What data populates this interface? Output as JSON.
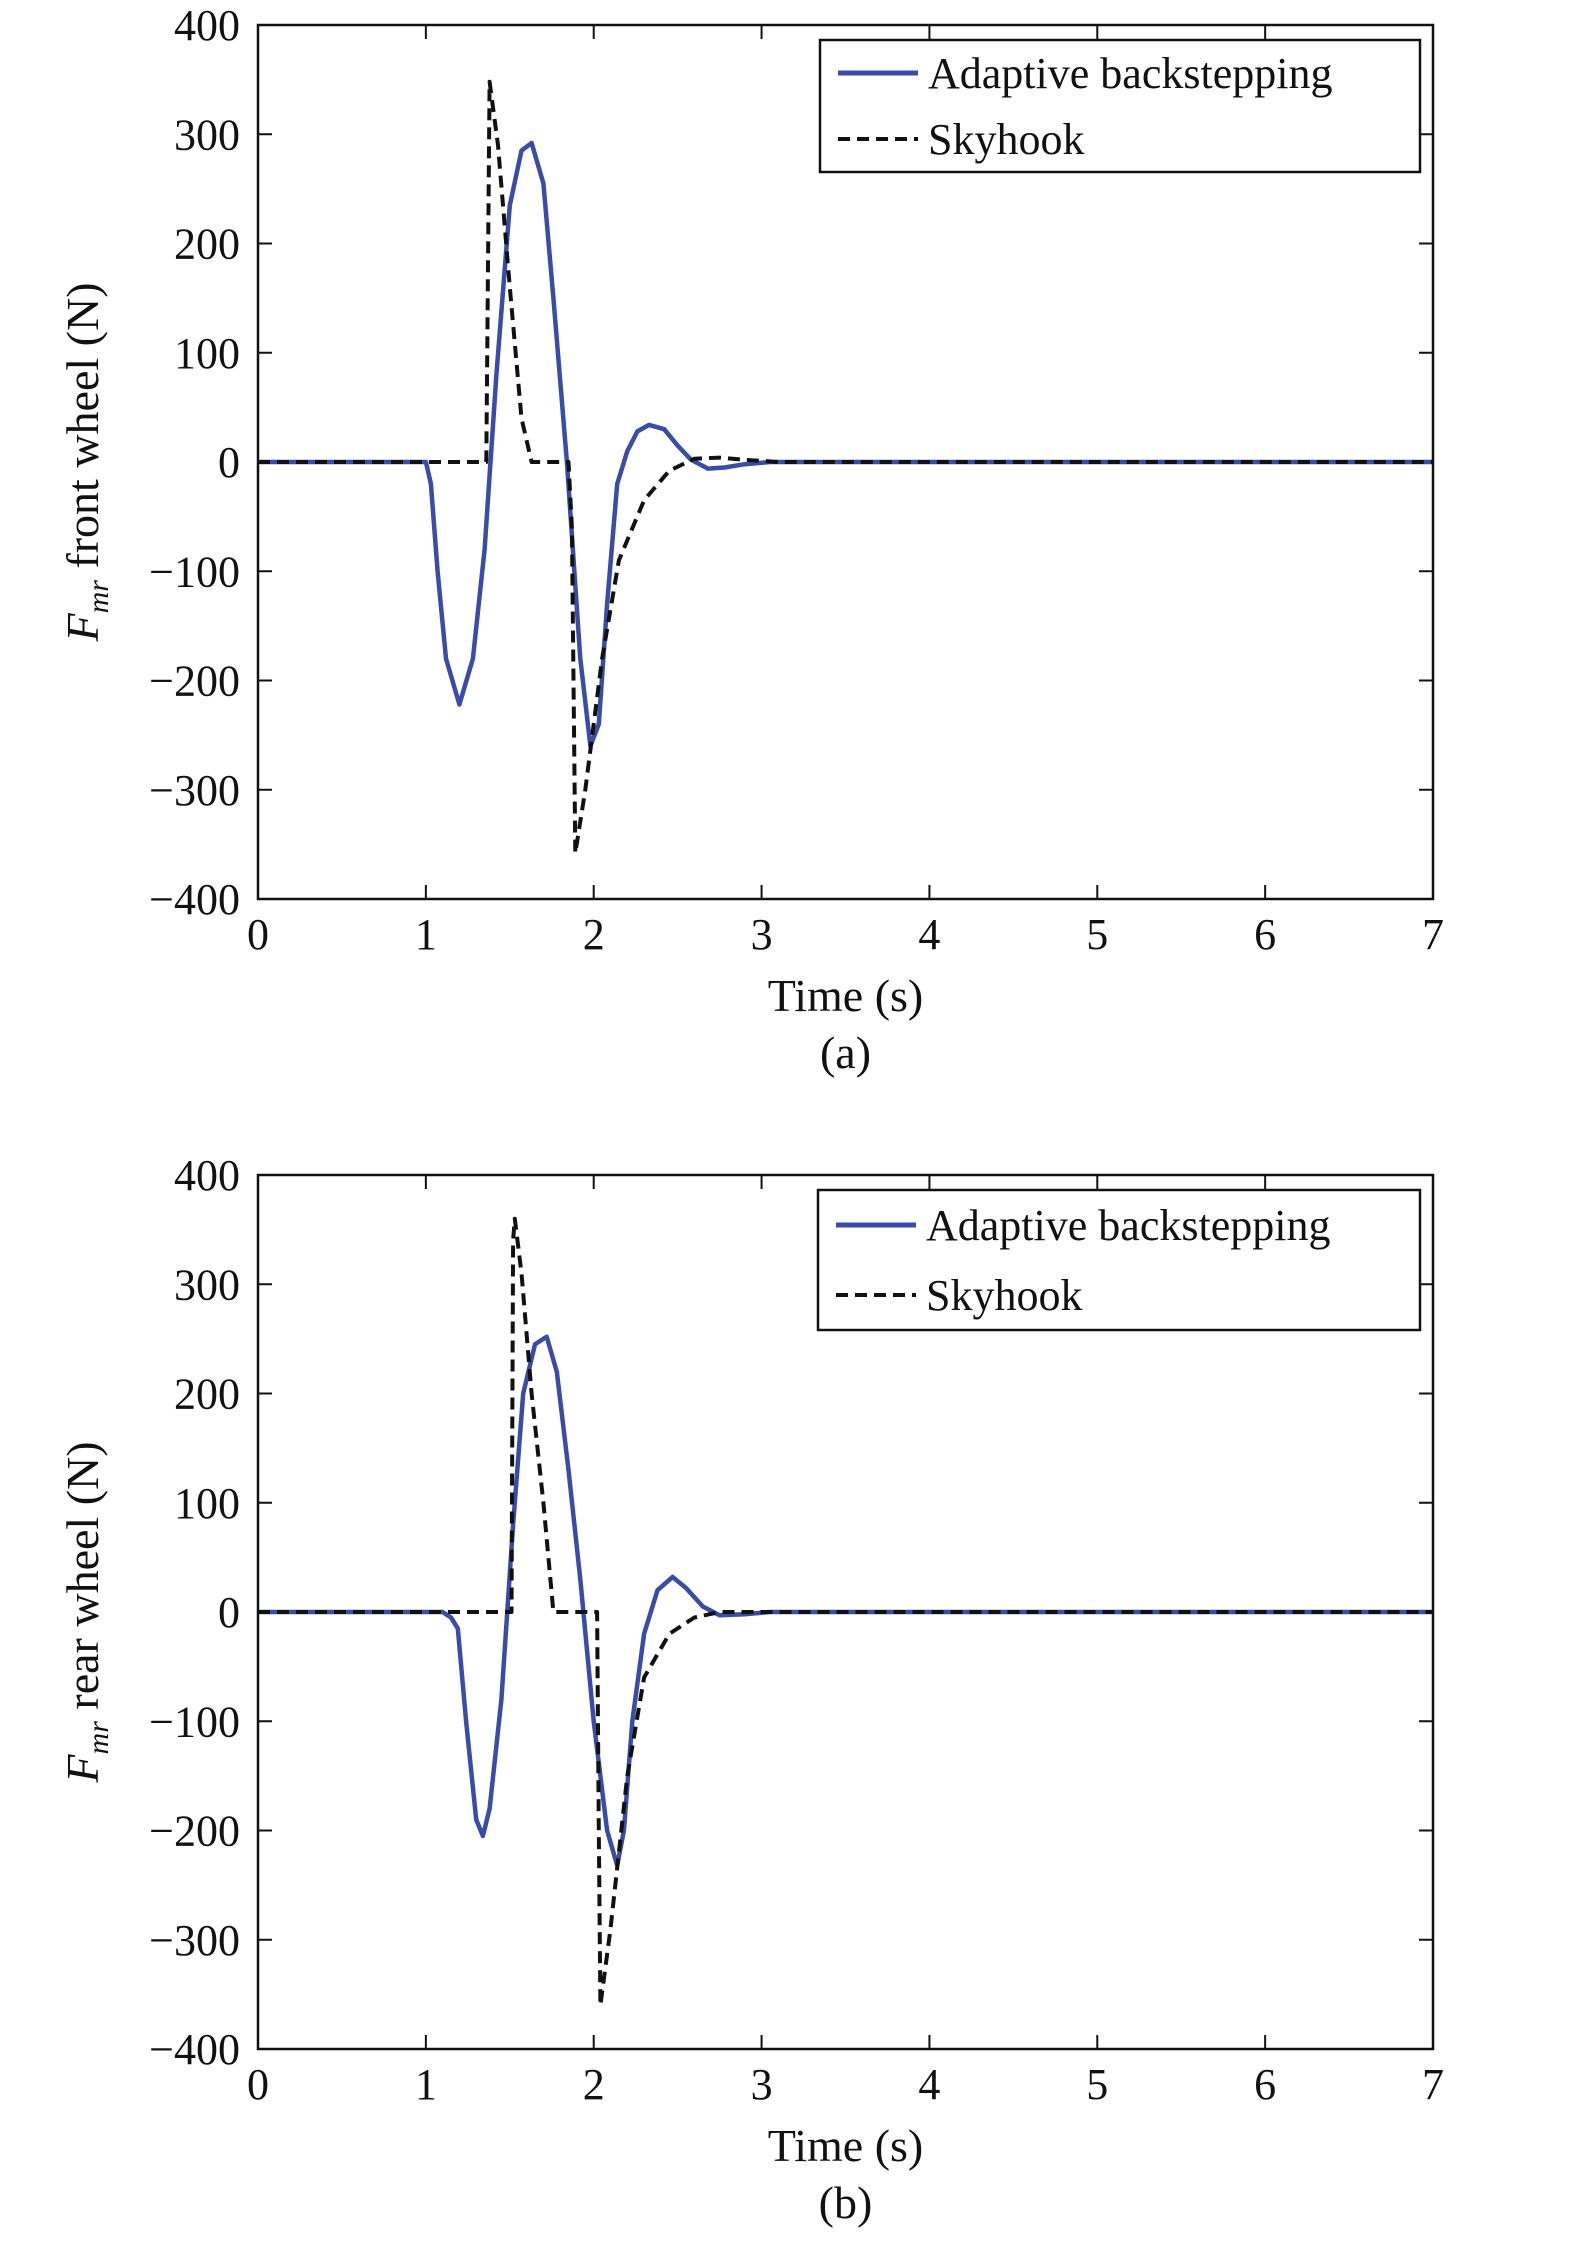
{
  "colors": {
    "adaptive": "#3a4ca8",
    "skyhook": "#111111",
    "axes": "#111111",
    "background": "#ffffff"
  },
  "chart_data": [
    {
      "type": "line",
      "caption": "(a)",
      "xlabel": "Time (s)",
      "ylabel": {
        "symbol": "F",
        "subscript": "mr",
        "text": " front wheel (N)"
      },
      "xlim": [
        0,
        7
      ],
      "ylim": [
        -400,
        400
      ],
      "xticks": [
        0,
        1,
        2,
        3,
        4,
        5,
        6,
        7
      ],
      "yticks": [
        -400,
        -300,
        -200,
        -100,
        0,
        100,
        200,
        300,
        400
      ],
      "ytick_labels": [
        "−400",
        "−300",
        "−200",
        "−100",
        "0",
        "100",
        "200",
        "300",
        "400"
      ],
      "grid": false,
      "legend_position": "top-right",
      "series": [
        {
          "name": "Adaptive backstepping",
          "style": "solid",
          "x": [
            0,
            1.0,
            1.03,
            1.07,
            1.12,
            1.2,
            1.28,
            1.35,
            1.42,
            1.5,
            1.57,
            1.63,
            1.7,
            1.76,
            1.84,
            1.92,
            1.98,
            2.03,
            2.08,
            2.14,
            2.2,
            2.26,
            2.33,
            2.42,
            2.5,
            2.58,
            2.68,
            2.78,
            2.9,
            3.05,
            3.25,
            7
          ],
          "y": [
            0,
            0,
            -20,
            -100,
            -180,
            -222,
            -180,
            -80,
            80,
            235,
            285,
            292,
            255,
            150,
            0,
            -180,
            -260,
            -240,
            -130,
            -20,
            10,
            28,
            34,
            30,
            15,
            2,
            -6,
            -5,
            -2,
            0,
            0,
            0
          ]
        },
        {
          "name": "Skyhook",
          "style": "dashed",
          "x": [
            0,
            1.36,
            1.38,
            1.43,
            1.5,
            1.57,
            1.63,
            1.65,
            1.85,
            1.87,
            1.89,
            1.95,
            2.05,
            2.15,
            2.3,
            2.45,
            2.6,
            2.75,
            2.9,
            3.1,
            7
          ],
          "y": [
            0,
            0,
            348,
            290,
            160,
            40,
            0,
            0,
            0,
            -60,
            -358,
            -300,
            -180,
            -90,
            -35,
            -8,
            3,
            4,
            2,
            0,
            0
          ]
        }
      ]
    },
    {
      "type": "line",
      "caption": "(b)",
      "xlabel": "Time (s)",
      "ylabel": {
        "symbol": "F",
        "subscript": "mr",
        "text": " rear wheel (N)"
      },
      "xlim": [
        0,
        7
      ],
      "ylim": [
        -400,
        400
      ],
      "xticks": [
        0,
        1,
        2,
        3,
        4,
        5,
        6,
        7
      ],
      "yticks": [
        -400,
        -300,
        -200,
        -100,
        0,
        100,
        200,
        300,
        400
      ],
      "ytick_labels": [
        "−400",
        "−300",
        "−200",
        "−100",
        "0",
        "100",
        "200",
        "300",
        "400"
      ],
      "grid": false,
      "legend_position": "top-right",
      "series": [
        {
          "name": "Adaptive backstepping",
          "style": "solid",
          "x": [
            0,
            1.1,
            1.15,
            1.19,
            1.24,
            1.3,
            1.34,
            1.38,
            1.45,
            1.52,
            1.58,
            1.65,
            1.72,
            1.78,
            1.85,
            1.92,
            2.0,
            2.08,
            2.14,
            2.18,
            2.23,
            2.3,
            2.38,
            2.47,
            2.55,
            2.65,
            2.75,
            2.9,
            3.05,
            3.3,
            7
          ],
          "y": [
            0,
            0,
            -5,
            -15,
            -100,
            -190,
            -205,
            -180,
            -80,
            80,
            200,
            245,
            252,
            220,
            130,
            30,
            -100,
            -200,
            -232,
            -200,
            -100,
            -20,
            20,
            32,
            22,
            5,
            -3,
            -2,
            0,
            0,
            0
          ]
        },
        {
          "name": "Skyhook",
          "style": "dashed",
          "x": [
            0,
            1.51,
            1.52,
            1.53,
            1.57,
            1.63,
            1.7,
            1.76,
            1.78,
            2.02,
            2.03,
            2.04,
            2.1,
            2.2,
            2.3,
            2.45,
            2.6,
            2.75,
            2.9,
            3.1,
            7
          ],
          "y": [
            0,
            0,
            340,
            360,
            310,
            200,
            100,
            0,
            0,
            0,
            -200,
            -360,
            -290,
            -150,
            -60,
            -20,
            -5,
            0,
            0,
            0,
            0
          ]
        }
      ]
    }
  ]
}
